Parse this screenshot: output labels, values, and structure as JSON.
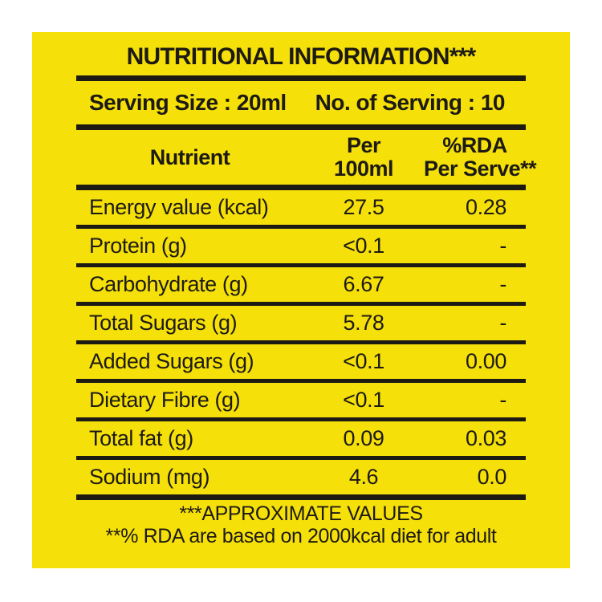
{
  "colors": {
    "label_background": "#f5e00a",
    "text_and_rules": "#1d1a14",
    "page_background": "#ffffff"
  },
  "header": {
    "title": "NUTRITIONAL INFORMATION***"
  },
  "serving": {
    "size_label": "Serving Size : 20ml",
    "count_label": "No. of Serving : 10"
  },
  "table": {
    "columns": {
      "nutrient": "Nutrient",
      "per_100ml_line1": "Per",
      "per_100ml_line2": "100ml",
      "rda_line1": "%RDA",
      "rda_line2": "Per Serve**"
    },
    "rows": [
      {
        "nutrient": "Energy value (kcal)",
        "per_100ml": "27.5",
        "rda_per_serve": "0.28"
      },
      {
        "nutrient": "Protein (g)",
        "per_100ml": "<0.1",
        "rda_per_serve": "-"
      },
      {
        "nutrient": "Carbohydrate (g)",
        "per_100ml": "6.67",
        "rda_per_serve": "-"
      },
      {
        "nutrient": "Total Sugars (g)",
        "per_100ml": "5.78",
        "rda_per_serve": "-"
      },
      {
        "nutrient": "Added Sugars (g)",
        "per_100ml": "<0.1",
        "rda_per_serve": "0.00"
      },
      {
        "nutrient": "Dietary Fibre (g)",
        "per_100ml": "<0.1",
        "rda_per_serve": "-"
      },
      {
        "nutrient": "Total fat (g)",
        "per_100ml": "0.09",
        "rda_per_serve": "0.03"
      },
      {
        "nutrient": "Sodium (mg)",
        "per_100ml": "4.6",
        "rda_per_serve": "0.0"
      }
    ]
  },
  "footer": {
    "line1": "***APPROXIMATE VALUES",
    "line2": "**% RDA are based on 2000kcal diet for adult"
  }
}
